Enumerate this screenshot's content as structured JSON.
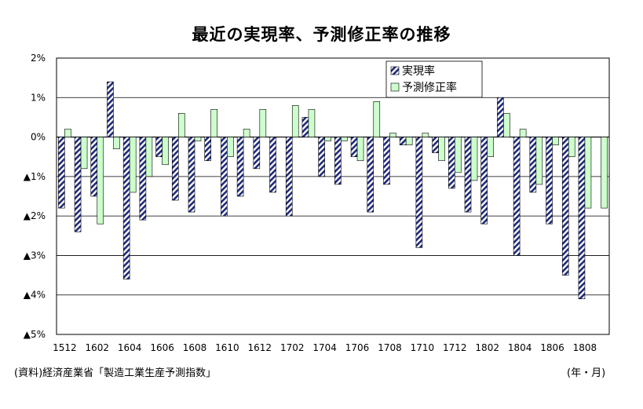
{
  "chart_data": {
    "type": "bar",
    "title": "最近の実現率、予測修正率の推移",
    "source_note": "(資料)経済産業省「製造工業生産予測指数」",
    "unit_note": "(年・月)",
    "ylim": [
      -5,
      2
    ],
    "y_ticks": [
      {
        "value": 2,
        "label": "2%"
      },
      {
        "value": 1,
        "label": "1%"
      },
      {
        "value": 0,
        "label": "0%"
      },
      {
        "value": -1,
        "label": "▲1%"
      },
      {
        "value": -2,
        "label": "▲2%"
      },
      {
        "value": -3,
        "label": "▲3%"
      },
      {
        "value": -4,
        "label": "▲4%"
      },
      {
        "value": -5,
        "label": "▲5%"
      }
    ],
    "x_tick_labels": [
      "1512",
      "1602",
      "1604",
      "1606",
      "1608",
      "1610",
      "1612",
      "1702",
      "1704",
      "1706",
      "1708",
      "1710",
      "1712",
      "1802",
      "1804",
      "1806",
      "1808"
    ],
    "categories": [
      "1512",
      "1601",
      "1602",
      "1603",
      "1604",
      "1605",
      "1606",
      "1607",
      "1608",
      "1609",
      "1610",
      "1611",
      "1612",
      "1701",
      "1702",
      "1703",
      "1704",
      "1705",
      "1706",
      "1707",
      "1708",
      "1709",
      "1710",
      "1711",
      "1712",
      "1801",
      "1802",
      "1803",
      "1804",
      "1805",
      "1806",
      "1807",
      "1808",
      "1809"
    ],
    "grid": true,
    "legend_placement": "top-right",
    "series": [
      {
        "name": "実現率",
        "color": "#1f2a7a",
        "pattern": "diagonal-hatch",
        "values": [
          -1.8,
          -2.4,
          -1.5,
          1.4,
          -3.6,
          -2.1,
          -0.5,
          -1.6,
          -1.9,
          -0.6,
          -2.0,
          -1.5,
          -0.8,
          -1.4,
          -2.0,
          0.5,
          -1.0,
          -1.2,
          -0.5,
          -1.9,
          -1.2,
          -0.2,
          -2.8,
          -0.4,
          -1.3,
          -1.9,
          -2.2,
          1.0,
          -3.0,
          -1.4,
          -2.2,
          -3.5,
          -4.1,
          null
        ]
      },
      {
        "name": "予測修正率",
        "color": "#ccffcc",
        "pattern": "solid",
        "values": [
          0.2,
          -0.8,
          -2.2,
          -0.3,
          -1.4,
          -1.0,
          -0.7,
          0.6,
          -0.1,
          0.7,
          -0.5,
          0.2,
          0.7,
          0.0,
          0.8,
          0.7,
          -0.1,
          -0.1,
          -0.6,
          0.9,
          0.1,
          -0.2,
          0.1,
          -0.6,
          -0.9,
          -1.1,
          -0.5,
          0.6,
          0.2,
          -1.2,
          -0.2,
          -0.5,
          -1.8,
          -1.8
        ]
      }
    ]
  }
}
